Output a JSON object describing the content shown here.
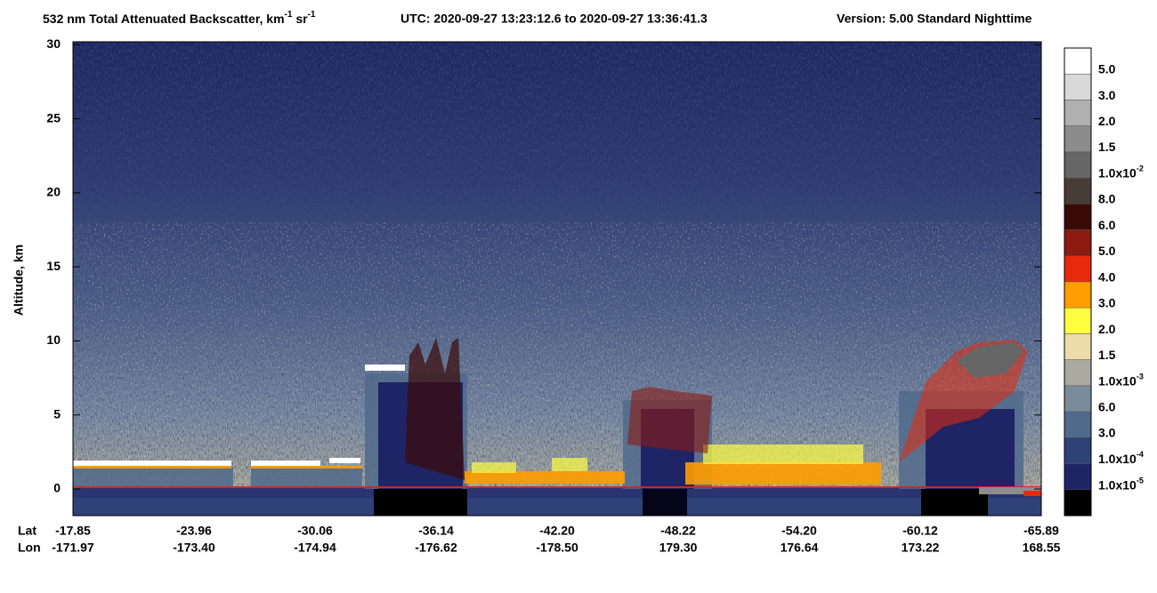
{
  "chart_data": {
    "type": "heatmap",
    "title_parts": [
      "532 nm Total Attenuated Backscatter, km",
      "-1",
      " sr",
      "-1"
    ],
    "subtitle": "UTC:  2020-09-27 13:23:12.6  to  2020-09-27 13:36:41.3",
    "version": "Version: 5.00  Standard  Nighttime",
    "ylabel": "Altitude, km",
    "ylim": [
      -1.8,
      30.2
    ],
    "yticks": [
      0,
      5,
      10,
      15,
      20,
      25,
      30
    ],
    "x_rows": [
      {
        "name": "Lat",
        "labels": [
          "-17.85",
          "-23.96",
          "-30.06",
          "-36.14",
          "-42.20",
          "-48.22",
          "-54.20",
          "-60.12",
          "-65.89"
        ]
      },
      {
        "name": "Lon",
        "labels": [
          "-171.97",
          "-173.40",
          "-174.94",
          "-176.62",
          "-178.50",
          "179.30",
          "176.64",
          "173.22",
          "168.55"
        ]
      }
    ],
    "colorbar": {
      "colors": [
        "#ffffff",
        "#d9d9d9",
        "#b0b0b0",
        "#8c8c8c",
        "#666666",
        "#483c37",
        "#3a0a06",
        "#8b1a10",
        "#e82a0a",
        "#ff9c00",
        "#ffff40",
        "#ecdcaa",
        "#aaaaa0",
        "#7a8c9a",
        "#506a8c",
        "#2e4278",
        "#1e2466",
        "#000000"
      ],
      "labels": [
        "5.0",
        "3.0",
        "2.0",
        "1.5",
        {
          "text": "1.0x10",
          "sup": "-2"
        },
        "8.0",
        "6.0",
        "5.0",
        "4.0",
        "3.0",
        "2.0",
        "1.5",
        {
          "text": "1.0x10",
          "sup": "-3"
        },
        "6.0",
        "3.0",
        {
          "text": "1.0x10",
          "sup": "-4"
        },
        {
          "text": "1.0x10",
          "sup": "-5"
        },
        null
      ]
    }
  }
}
